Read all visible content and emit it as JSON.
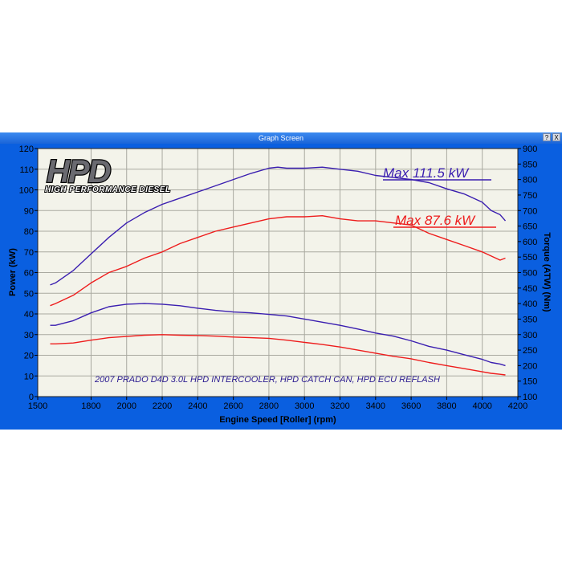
{
  "window": {
    "title": "Graph Screen",
    "buttons": {
      "help": "?",
      "close": "X"
    }
  },
  "logo": {
    "main": "HPD",
    "sub": "HIGH PERFORMANCE DIESEL"
  },
  "colors": {
    "frame": "#0a5fe0",
    "plot_bg": "#f3f3ea",
    "grid": "#a9a9a0",
    "purple": "#3a1eb0",
    "red": "#ee1c1c"
  },
  "chart_data": {
    "type": "line",
    "xlabel": "Engine Speed [Roller] (rpm)",
    "ylabel_left": "Power (kW)",
    "ylabel_right": "Torque (ATW) (Nm)",
    "xlim": [
      1500,
      4200
    ],
    "ylim_left": [
      0,
      120
    ],
    "ylim_right": [
      100,
      900
    ],
    "xticks": [
      1500,
      1800,
      2000,
      2200,
      2400,
      2600,
      2800,
      3000,
      3200,
      3400,
      3600,
      3800,
      4000,
      4200
    ],
    "yticks_left": [
      0,
      10,
      20,
      30,
      40,
      50,
      60,
      70,
      80,
      90,
      100,
      110,
      120
    ],
    "yticks_right": [
      100,
      150,
      200,
      250,
      300,
      350,
      400,
      450,
      500,
      550,
      600,
      650,
      700,
      750,
      800,
      850,
      900
    ],
    "grid": true,
    "annotations": {
      "max_purple": "Max 111.5 kW",
      "max_red": "Max 87.6 kW",
      "note": "2007 PRADO D4D 3.0L HPD INTERCOOLER, HPD CATCH CAN, HPD ECU REFLASH"
    },
    "series": [
      {
        "color": "#3a1eb0",
        "axis": "left",
        "x": [
          1570,
          1600,
          1700,
          1800,
          1900,
          2000,
          2100,
          2200,
          2300,
          2400,
          2500,
          2600,
          2700,
          2800,
          2850,
          2900,
          3000,
          3100,
          3200,
          3300,
          3400,
          3500,
          3600,
          3700,
          3800,
          3900,
          4000,
          4050,
          4100,
          4130
        ],
        "y": [
          54,
          55,
          61,
          69,
          77,
          84,
          89,
          93,
          96,
          99,
          102,
          105,
          108,
          110.5,
          111,
          110.5,
          110.5,
          111,
          110,
          109,
          107,
          106,
          105,
          103.5,
          100.5,
          98,
          94,
          90,
          88,
          85
        ]
      },
      {
        "color": "#ee1c1c",
        "axis": "left",
        "x": [
          1570,
          1600,
          1700,
          1800,
          1900,
          2000,
          2100,
          2200,
          2300,
          2400,
          2500,
          2600,
          2700,
          2800,
          2900,
          3000,
          3100,
          3200,
          3300,
          3400,
          3500,
          3600,
          3700,
          3800,
          3900,
          4000,
          4050,
          4100,
          4130
        ],
        "y": [
          44,
          45,
          49,
          55,
          60,
          63,
          67,
          70,
          74,
          77,
          80,
          82,
          84,
          86,
          87,
          87,
          87.5,
          86,
          85,
          85,
          84,
          83,
          79,
          76,
          73,
          70,
          68,
          66,
          67
        ]
      },
      {
        "color": "#3a1eb0",
        "axis": "right",
        "x": [
          1570,
          1600,
          1700,
          1800,
          1900,
          2000,
          2100,
          2200,
          2300,
          2400,
          2500,
          2600,
          2700,
          2800,
          2900,
          3000,
          3100,
          3200,
          3300,
          3400,
          3500,
          3600,
          3700,
          3800,
          3900,
          4000,
          4050,
          4100,
          4130
        ],
        "y": [
          330,
          330,
          345,
          370,
          390,
          398,
          400,
          398,
          393,
          385,
          378,
          373,
          370,
          365,
          360,
          350,
          340,
          330,
          318,
          305,
          295,
          280,
          262,
          250,
          235,
          220,
          210,
          205,
          200
        ]
      },
      {
        "color": "#ee1c1c",
        "axis": "right",
        "x": [
          1570,
          1600,
          1700,
          1800,
          1900,
          2000,
          2100,
          2200,
          2300,
          2400,
          2500,
          2600,
          2700,
          2800,
          2900,
          3000,
          3100,
          3200,
          3300,
          3400,
          3500,
          3600,
          3700,
          3800,
          3900,
          4000,
          4050,
          4100,
          4130
        ],
        "y": [
          270,
          270,
          273,
          282,
          290,
          294,
          298,
          300,
          298,
          297,
          295,
          292,
          290,
          288,
          282,
          275,
          268,
          260,
          250,
          240,
          230,
          222,
          210,
          200,
          190,
          180,
          175,
          172,
          170
        ]
      }
    ]
  }
}
